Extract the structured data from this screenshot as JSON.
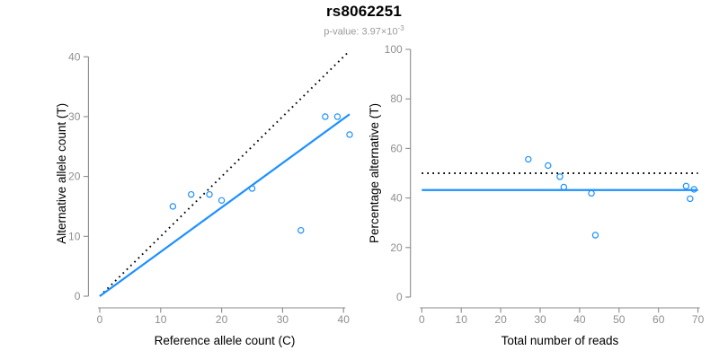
{
  "header": {
    "title": "rs8062251",
    "p_value_label": "p-value: 3.97×10",
    "p_value_exponent": "-3"
  },
  "colors": {
    "accent_blue": "#1E90FF",
    "axis_gray": "#8a8a8a",
    "tick_label_gray": "#8e8e8e",
    "text_black": "#000000",
    "dotted_line_black": "#000000"
  },
  "chart_data": [
    {
      "type": "scatter",
      "panel": "allele-counts",
      "title": "rs8062251",
      "xlabel": "Reference allele count (C)",
      "ylabel": "Alternative allele count (T)",
      "xlim": [
        0,
        41
      ],
      "ylim": [
        0,
        41
      ],
      "x_ticks": [
        0,
        10,
        20,
        30,
        40
      ],
      "y_ticks": [
        0,
        10,
        20,
        30,
        40
      ],
      "grid": false,
      "legend": null,
      "points": [
        [
          12,
          15
        ],
        [
          15,
          17
        ],
        [
          18,
          17
        ],
        [
          20,
          16
        ],
        [
          25,
          18
        ],
        [
          33,
          11
        ],
        [
          37,
          30
        ],
        [
          39,
          30
        ],
        [
          41,
          27
        ]
      ],
      "lines": [
        {
          "name": "identity-dotted-line",
          "style": "dotted",
          "color": "#000000",
          "x1": 0,
          "y1": 0,
          "x2": 41,
          "y2": 41
        },
        {
          "name": "fit-line",
          "style": "solid",
          "color": "#1E90FF",
          "x1": 0,
          "y1": 0,
          "x2": 41,
          "y2": 30.4
        }
      ]
    },
    {
      "type": "scatter",
      "panel": "percentage-vs-reads",
      "title": "",
      "xlabel": "Total number of reads",
      "ylabel": "Percentage alternative (T)",
      "xlim": [
        0,
        70
      ],
      "ylim": [
        0,
        100
      ],
      "x_ticks": [
        0,
        10,
        20,
        30,
        40,
        50,
        60,
        70
      ],
      "y_ticks": [
        0,
        20,
        40,
        60,
        80,
        100
      ],
      "grid": false,
      "legend": null,
      "points": [
        [
          27,
          55.6
        ],
        [
          32,
          53.1
        ],
        [
          35,
          48.6
        ],
        [
          36,
          44.4
        ],
        [
          43,
          41.9
        ],
        [
          44,
          25
        ],
        [
          67,
          44.8
        ],
        [
          69,
          43.5
        ],
        [
          68,
          39.7
        ]
      ],
      "lines": [
        {
          "name": "expected-50pct-dotted-line",
          "style": "dotted",
          "color": "#000000",
          "x1": 0,
          "y1": 50,
          "x2": 70,
          "y2": 50
        },
        {
          "name": "mean-percentage-line",
          "style": "solid",
          "color": "#1E90FF",
          "x1": 0,
          "y1": 43.2,
          "x2": 70,
          "y2": 43.2
        }
      ]
    }
  ]
}
